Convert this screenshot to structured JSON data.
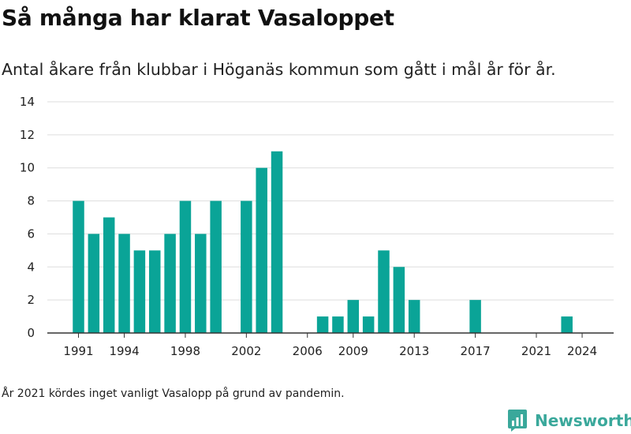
{
  "header": {
    "title": "Så många har klarat Vasaloppet",
    "subtitle": "Antal åkare från klubbar i Höganäs kommun som gått i mål år för år."
  },
  "footer": {
    "note": "År 2021 kördes inget vanligt Vasalopp på grund av pandemin.",
    "brand": "Newsworthy"
  },
  "colors": {
    "bar": "#0aa497",
    "grid": "#dddddd",
    "axis": "#333333",
    "brand": "#3aa89b"
  },
  "chart_data": {
    "type": "bar",
    "x": [
      1991,
      1992,
      1993,
      1994,
      1995,
      1996,
      1997,
      1998,
      1999,
      2000,
      2001,
      2002,
      2003,
      2004,
      2005,
      2006,
      2007,
      2008,
      2009,
      2010,
      2011,
      2012,
      2013,
      2014,
      2015,
      2016,
      2017,
      2018,
      2019,
      2020,
      2021,
      2022,
      2023,
      2024
    ],
    "values": [
      8,
      6,
      7,
      6,
      5,
      5,
      6,
      8,
      6,
      8,
      0,
      8,
      10,
      11,
      0,
      0,
      1,
      1,
      2,
      1,
      5,
      4,
      2,
      0,
      0,
      0,
      2,
      0,
      0,
      0,
      0,
      0,
      1,
      0
    ],
    "xticks": [
      1991,
      1994,
      1998,
      2002,
      2006,
      2009,
      2013,
      2017,
      2021,
      2024
    ],
    "yticks": [
      0,
      2,
      4,
      6,
      8,
      10,
      12,
      14
    ],
    "ylim": [
      0,
      14
    ],
    "grid": true,
    "legend": "none"
  }
}
